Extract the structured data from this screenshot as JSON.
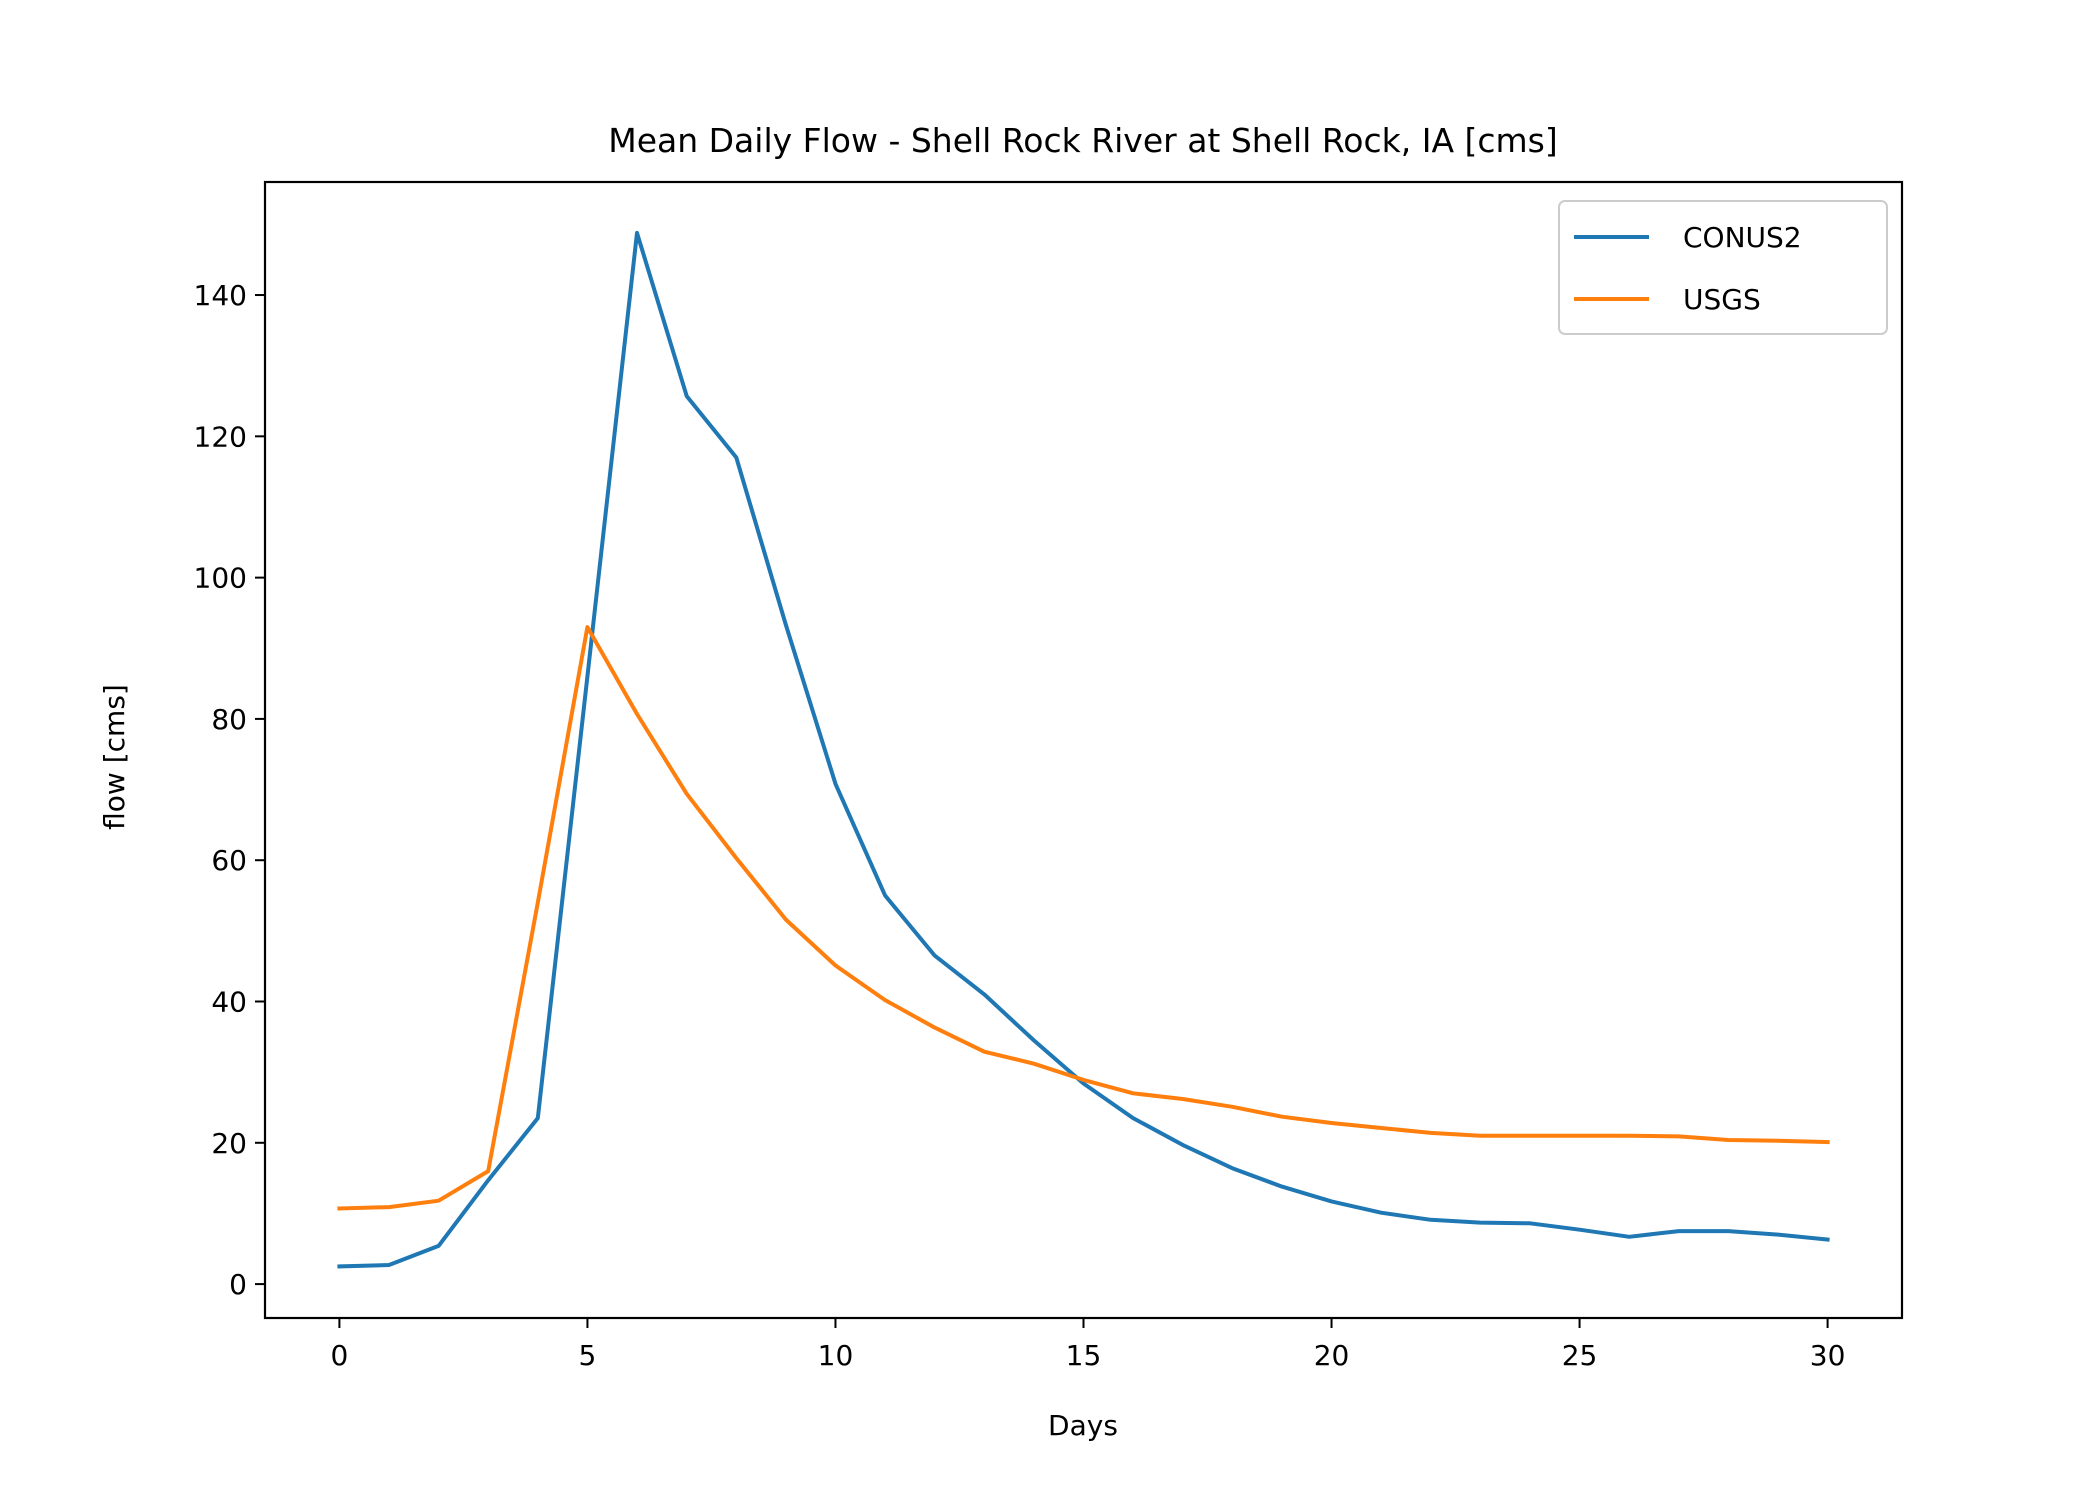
{
  "chart_data": {
    "type": "line",
    "title": "Mean Daily Flow - Shell Rock River at Shell Rock, IA [cms]",
    "xlabel": "Days",
    "ylabel": "flow [cms]",
    "xlim": [
      -1.5,
      31.5
    ],
    "ylim": [
      -4.8,
      156
    ],
    "xticks": [
      0,
      5,
      10,
      15,
      20,
      25,
      30
    ],
    "yticks": [
      0,
      20,
      40,
      60,
      80,
      100,
      120,
      140
    ],
    "grid": false,
    "legend_position": "top-right",
    "x": [
      0,
      1,
      2,
      3,
      4,
      5,
      6,
      7,
      8,
      9,
      10,
      11,
      12,
      13,
      14,
      15,
      16,
      17,
      18,
      19,
      20,
      21,
      22,
      23,
      24,
      25,
      26,
      27,
      28,
      29,
      30
    ],
    "series": [
      {
        "name": "CONUS2",
        "color": "#1f77b4",
        "values": [
          2.5,
          2.7,
          5.4,
          14.7,
          23.5,
          86.0,
          148.8,
          125.7,
          117.0,
          93.3,
          70.8,
          55.0,
          46.5,
          41.0,
          34.5,
          28.4,
          23.5,
          19.7,
          16.4,
          13.8,
          11.7,
          10.1,
          9.1,
          8.7,
          8.6,
          7.7,
          6.7,
          7.5,
          7.5,
          7.0,
          6.3
        ]
      },
      {
        "name": "USGS",
        "color": "#ff7f0e",
        "values": [
          10.7,
          10.9,
          11.8,
          16.0,
          54.0,
          93.0,
          80.7,
          69.4,
          60.3,
          51.6,
          45.1,
          40.2,
          36.3,
          32.9,
          31.2,
          28.9,
          27.0,
          26.2,
          25.1,
          23.7,
          22.8,
          22.1,
          21.4,
          21.0,
          21.0,
          21.0,
          21.0,
          20.9,
          20.4,
          20.3,
          20.1
        ]
      }
    ]
  }
}
